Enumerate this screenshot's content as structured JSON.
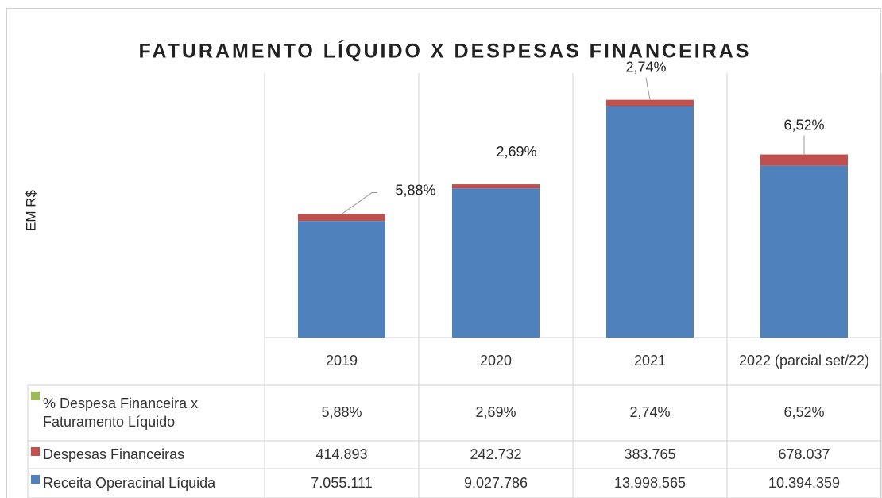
{
  "chart_data": {
    "type": "stacked_bar",
    "title": "FATURAMENTO LÍQUIDO X DESPESAS FINANCEIRAS",
    "y_label": "EM R$",
    "categories": [
      "2019",
      "2020",
      "2021",
      "2022 (parcial set/22)"
    ],
    "ylim": [
      0,
      16000000
    ],
    "series": [
      {
        "name": "% Despesa Financeira x Faturamento Líquido",
        "color": "#9bbb59",
        "values": [
          5.88,
          2.69,
          2.74,
          6.52
        ],
        "value_labels": [
          "5,88%",
          "2,69%",
          "2,74%",
          "6,52%"
        ]
      },
      {
        "name": "Despesas Financeiras",
        "color": "#c0504d",
        "values": [
          414893,
          242732,
          383765,
          678037
        ],
        "value_labels": [
          "414.893",
          "242.732",
          "383.765",
          "678.037"
        ]
      },
      {
        "name": "Receita Operacinal Líquida",
        "color": "#4f81bd",
        "values": [
          7055111,
          9027786,
          13998565,
          10394359
        ],
        "value_labels": [
          "7.055.111",
          "9.027.786",
          "13.998.565",
          "10.394.359"
        ]
      }
    ]
  }
}
